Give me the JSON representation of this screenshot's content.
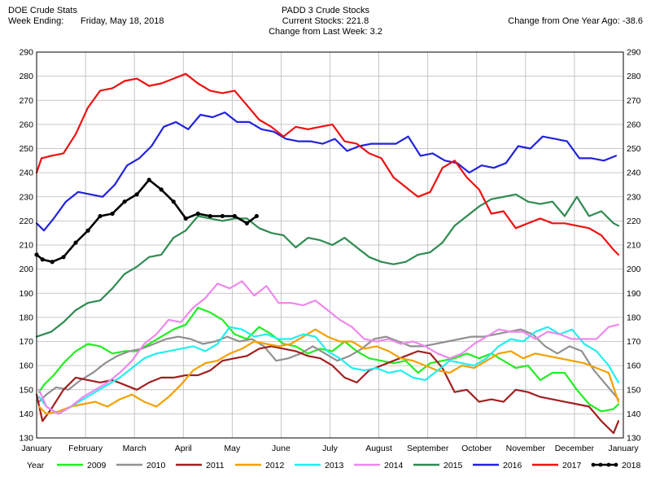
{
  "header": {
    "app_title": "DOE Crude Stats",
    "week_ending_label": "Week Ending:",
    "week_ending_value": "Friday, May 18, 2018",
    "chart_title": "PADD 3 Crude Stocks",
    "current_stocks_label": "Current Stocks:",
    "current_stocks_value": "221.8",
    "change_week_label": "Change from Last Week:",
    "change_week_value": "3.2",
    "change_year_label": "Change from One Year Ago:",
    "change_year_value": "-38.6"
  },
  "chart_data": {
    "type": "line",
    "title": "PADD 3 Crude Stocks",
    "xlabel": "",
    "ylabel": "",
    "ylim": [
      130,
      290
    ],
    "xlim": [
      0,
      12
    ],
    "y_ticks": [
      130,
      140,
      150,
      160,
      170,
      180,
      190,
      200,
      210,
      220,
      230,
      240,
      250,
      260,
      270,
      280,
      290
    ],
    "x_tick_labels": [
      "January",
      "February",
      "March",
      "April",
      "May",
      "June",
      "July",
      "August",
      "September",
      "October",
      "November",
      "December",
      "January"
    ],
    "legend_title": "Year",
    "legend_position": "bottom",
    "grid": true,
    "right_axis_mirrors_left": true,
    "series": [
      {
        "name": "2009",
        "color": "#22ee22",
        "markers": false,
        "x": [
          0.05,
          0.15,
          0.35,
          0.55,
          0.8,
          1.05,
          1.3,
          1.55,
          1.8,
          2.05,
          2.3,
          2.55,
          2.8,
          3.05,
          3.3,
          3.55,
          3.8,
          4.05,
          4.3,
          4.55,
          4.8,
          5.05,
          5.3,
          5.55,
          5.8,
          6.05,
          6.3,
          6.55,
          6.8,
          7.05,
          7.3,
          7.55,
          7.8,
          8.05,
          8.3,
          8.55,
          8.8,
          9.05,
          9.3,
          9.55,
          9.8,
          10.05,
          10.3,
          10.55,
          10.8,
          11.05,
          11.3,
          11.55,
          11.8,
          11.9
        ],
        "y": [
          149,
          152,
          156,
          161,
          166,
          169,
          168,
          165,
          166,
          166,
          169,
          172,
          175,
          177,
          184,
          182,
          179,
          173,
          171,
          176,
          173,
          169,
          168,
          165,
          167,
          166,
          170,
          166,
          163,
          162,
          161,
          162,
          157,
          161,
          162,
          163,
          165,
          163,
          165,
          162,
          159,
          160,
          154,
          157,
          157,
          150,
          144,
          141,
          142,
          144
        ]
      },
      {
        "name": "2010",
        "color": "#909090",
        "markers": false,
        "x": [
          0.05,
          0.2,
          0.4,
          0.65,
          0.9,
          1.15,
          1.4,
          1.65,
          1.9,
          2.15,
          2.4,
          2.65,
          2.9,
          3.15,
          3.4,
          3.65,
          3.9,
          4.15,
          4.4,
          4.65,
          4.9,
          5.15,
          5.4,
          5.65,
          5.9,
          6.15,
          6.4,
          6.65,
          6.9,
          7.15,
          7.4,
          7.65,
          7.9,
          8.15,
          8.4,
          8.65,
          8.9,
          9.15,
          9.4,
          9.65,
          9.9,
          10.15,
          10.4,
          10.65,
          10.9,
          11.15,
          11.4,
          11.65,
          11.9
        ],
        "y": [
          145,
          148,
          151,
          150,
          154,
          157,
          161,
          164,
          166,
          167,
          169,
          171,
          172,
          171,
          169,
          170,
          172,
          170,
          171,
          168,
          162,
          163,
          165,
          168,
          165,
          162,
          164,
          167,
          171,
          172,
          170,
          168,
          168,
          169,
          170,
          171,
          172,
          172,
          173,
          174,
          175,
          173,
          168,
          165,
          168,
          166,
          158,
          152,
          146
        ]
      },
      {
        "name": "2011",
        "color": "#a02020",
        "markers": false,
        "x": [
          0.0,
          0.12,
          0.3,
          0.55,
          0.8,
          1.05,
          1.3,
          1.55,
          1.8,
          2.05,
          2.3,
          2.55,
          2.8,
          3.05,
          3.3,
          3.55,
          3.8,
          4.05,
          4.3,
          4.55,
          4.8,
          5.05,
          5.3,
          5.55,
          5.8,
          6.05,
          6.3,
          6.55,
          6.8,
          7.05,
          7.3,
          7.55,
          7.8,
          8.05,
          8.3,
          8.55,
          8.8,
          9.05,
          9.3,
          9.55,
          9.8,
          10.05,
          10.3,
          10.55,
          10.8,
          11.05,
          11.3,
          11.55,
          11.8,
          11.9
        ],
        "y": [
          148,
          137,
          142,
          150,
          155,
          154,
          153,
          154,
          152,
          150,
          153,
          155,
          155,
          156,
          156,
          158,
          162,
          163,
          164,
          167,
          168,
          167,
          166,
          164,
          163,
          160,
          155,
          153,
          158,
          160,
          162,
          164,
          166,
          165,
          159,
          149,
          150,
          145,
          146,
          145,
          150,
          149,
          147,
          146,
          145,
          144,
          143,
          137,
          132,
          137
        ]
      },
      {
        "name": "2012",
        "color": "#f4a000",
        "markers": false,
        "x": [
          0.05,
          0.2,
          0.45,
          0.7,
          0.95,
          1.2,
          1.45,
          1.7,
          1.95,
          2.2,
          2.45,
          2.7,
          2.95,
          3.2,
          3.45,
          3.7,
          3.95,
          4.2,
          4.45,
          4.7,
          4.95,
          5.2,
          5.45,
          5.7,
          5.95,
          6.2,
          6.45,
          6.7,
          6.95,
          7.2,
          7.45,
          7.7,
          7.95,
          8.2,
          8.45,
          8.7,
          8.95,
          9.2,
          9.45,
          9.7,
          9.95,
          10.2,
          10.45,
          10.7,
          10.95,
          11.2,
          11.45,
          11.7,
          11.9
        ],
        "y": [
          143,
          140,
          141,
          143,
          144,
          145,
          143,
          146,
          148,
          145,
          143,
          147,
          152,
          158,
          161,
          162,
          165,
          167,
          170,
          169,
          168,
          169,
          172,
          175,
          172,
          170,
          170,
          167,
          168,
          166,
          163,
          162,
          160,
          158,
          157,
          160,
          159,
          162,
          165,
          166,
          163,
          165,
          164,
          163,
          162,
          161,
          159,
          157,
          145
        ]
      },
      {
        "name": "2013",
        "color": "#22eeee",
        "markers": false,
        "x": [
          0.05,
          0.2,
          0.45,
          0.7,
          0.95,
          1.2,
          1.45,
          1.7,
          1.95,
          2.2,
          2.45,
          2.7,
          2.95,
          3.2,
          3.45,
          3.7,
          3.95,
          4.2,
          4.45,
          4.7,
          4.95,
          5.2,
          5.45,
          5.7,
          5.95,
          6.2,
          6.45,
          6.7,
          6.95,
          7.2,
          7.45,
          7.7,
          7.95,
          8.2,
          8.45,
          8.7,
          8.95,
          9.2,
          9.45,
          9.7,
          9.95,
          10.2,
          10.45,
          10.7,
          10.95,
          11.2,
          11.45,
          11.7,
          11.9
        ],
        "y": [
          147,
          143,
          140,
          143,
          146,
          149,
          152,
          155,
          159,
          163,
          165,
          166,
          167,
          168,
          166,
          169,
          176,
          175,
          172,
          173,
          171,
          171,
          173,
          172,
          166,
          163,
          159,
          158,
          159,
          157,
          158,
          155,
          154,
          158,
          162,
          161,
          160,
          163,
          168,
          171,
          170,
          174,
          176,
          173,
          175,
          169,
          166,
          160,
          153
        ]
      },
      {
        "name": "2014",
        "color": "#ee88ee",
        "markers": false,
        "x": [
          0.05,
          0.2,
          0.45,
          0.7,
          0.95,
          1.2,
          1.45,
          1.7,
          1.95,
          2.2,
          2.45,
          2.7,
          2.95,
          3.2,
          3.45,
          3.7,
          3.95,
          4.2,
          4.45,
          4.7,
          4.95,
          5.2,
          5.45,
          5.7,
          5.95,
          6.2,
          6.45,
          6.7,
          6.95,
          7.2,
          7.45,
          7.7,
          7.95,
          8.2,
          8.45,
          8.7,
          8.95,
          9.2,
          9.45,
          9.7,
          9.95,
          10.2,
          10.45,
          10.7,
          10.95,
          11.2,
          11.45,
          11.7,
          11.9
        ],
        "y": [
          150,
          143,
          140,
          143,
          147,
          150,
          153,
          157,
          162,
          169,
          173,
          179,
          178,
          184,
          188,
          194,
          192,
          195,
          189,
          193,
          186,
          186,
          185,
          187,
          183,
          179,
          176,
          171,
          170,
          171,
          169,
          170,
          168,
          165,
          163,
          165,
          169,
          172,
          175,
          174,
          174,
          171,
          174,
          173,
          171,
          171,
          171,
          176,
          177
        ]
      },
      {
        "name": "2015",
        "color": "#2e8b50",
        "markers": false,
        "x": [
          0.0,
          0.3,
          0.55,
          0.8,
          1.05,
          1.3,
          1.55,
          1.8,
          2.05,
          2.3,
          2.55,
          2.8,
          3.05,
          3.3,
          3.55,
          3.8,
          4.05,
          4.3,
          4.55,
          4.8,
          5.05,
          5.3,
          5.55,
          5.8,
          6.05,
          6.3,
          6.55,
          6.8,
          7.05,
          7.3,
          7.55,
          7.8,
          8.05,
          8.3,
          8.55,
          8.8,
          9.05,
          9.3,
          9.55,
          9.8,
          10.05,
          10.3,
          10.55,
          10.8,
          11.05,
          11.3,
          11.55,
          11.8,
          11.9
        ],
        "y": [
          172,
          174,
          178,
          183,
          186,
          187,
          192,
          198,
          201,
          205,
          206,
          213,
          216,
          222,
          221,
          220,
          221,
          221,
          217,
          215,
          214,
          209,
          213,
          212,
          210,
          213,
          209,
          205,
          203,
          202,
          203,
          206,
          207,
          211,
          218,
          222,
          226,
          229,
          230,
          231,
          228,
          227,
          228,
          222,
          230,
          222,
          224,
          219,
          218
        ]
      },
      {
        "name": "2016",
        "color": "#2222dd",
        "markers": false,
        "x": [
          0.0,
          0.15,
          0.35,
          0.6,
          0.85,
          1.1,
          1.35,
          1.6,
          1.85,
          2.1,
          2.35,
          2.6,
          2.85,
          3.1,
          3.35,
          3.6,
          3.85,
          4.1,
          4.35,
          4.6,
          4.85,
          5.1,
          5.35,
          5.6,
          5.85,
          6.1,
          6.35,
          6.6,
          6.85,
          7.1,
          7.35,
          7.6,
          7.85,
          8.1,
          8.35,
          8.6,
          8.85,
          9.1,
          9.35,
          9.6,
          9.85,
          10.1,
          10.35,
          10.6,
          10.85,
          11.1,
          11.35,
          11.6,
          11.85
        ],
        "y": [
          219,
          216,
          221,
          228,
          232,
          231,
          230,
          235,
          243,
          246,
          251,
          259,
          261,
          258,
          264,
          263,
          265,
          261,
          261,
          258,
          257,
          254,
          253,
          253,
          252,
          254,
          249,
          251,
          252,
          252,
          252,
          255,
          247,
          248,
          245,
          244,
          240,
          243,
          242,
          244,
          251,
          250,
          255,
          254,
          253,
          246,
          246,
          245,
          247
        ]
      },
      {
        "name": "2017",
        "color": "#ee1111",
        "markers": false,
        "x": [
          0.0,
          0.1,
          0.3,
          0.55,
          0.8,
          1.05,
          1.3,
          1.55,
          1.8,
          2.05,
          2.3,
          2.55,
          2.8,
          3.05,
          3.3,
          3.55,
          3.8,
          4.05,
          4.3,
          4.55,
          4.8,
          5.05,
          5.3,
          5.55,
          5.8,
          6.05,
          6.3,
          6.55,
          6.8,
          7.05,
          7.3,
          7.55,
          7.8,
          8.05,
          8.3,
          8.55,
          8.8,
          9.05,
          9.3,
          9.55,
          9.8,
          10.05,
          10.3,
          10.55,
          10.8,
          11.05,
          11.3,
          11.55,
          11.8,
          11.9
        ],
        "y": [
          240,
          246,
          247,
          248,
          256,
          267,
          274,
          275,
          278,
          279,
          276,
          277,
          279,
          281,
          277,
          274,
          273,
          274,
          268,
          262,
          259,
          255,
          259,
          258,
          259,
          260,
          253,
          252,
          248,
          246,
          238,
          234,
          230,
          232,
          242,
          245,
          238,
          233,
          223,
          224,
          217,
          219,
          221,
          219,
          219,
          218,
          217,
          214,
          208,
          206
        ]
      },
      {
        "name": "2018",
        "color": "#000000",
        "markers": true,
        "x": [
          0.0,
          0.12,
          0.32,
          0.55,
          0.8,
          1.05,
          1.3,
          1.55,
          1.8,
          2.05,
          2.3,
          2.55,
          2.8,
          3.05,
          3.3,
          3.55,
          3.8,
          4.05,
          4.3,
          4.5
        ],
        "y": [
          206,
          204,
          203,
          205,
          211,
          216,
          222,
          223,
          228,
          231,
          237,
          233,
          228,
          221,
          223,
          222,
          222,
          222,
          219,
          222
        ]
      }
    ]
  }
}
